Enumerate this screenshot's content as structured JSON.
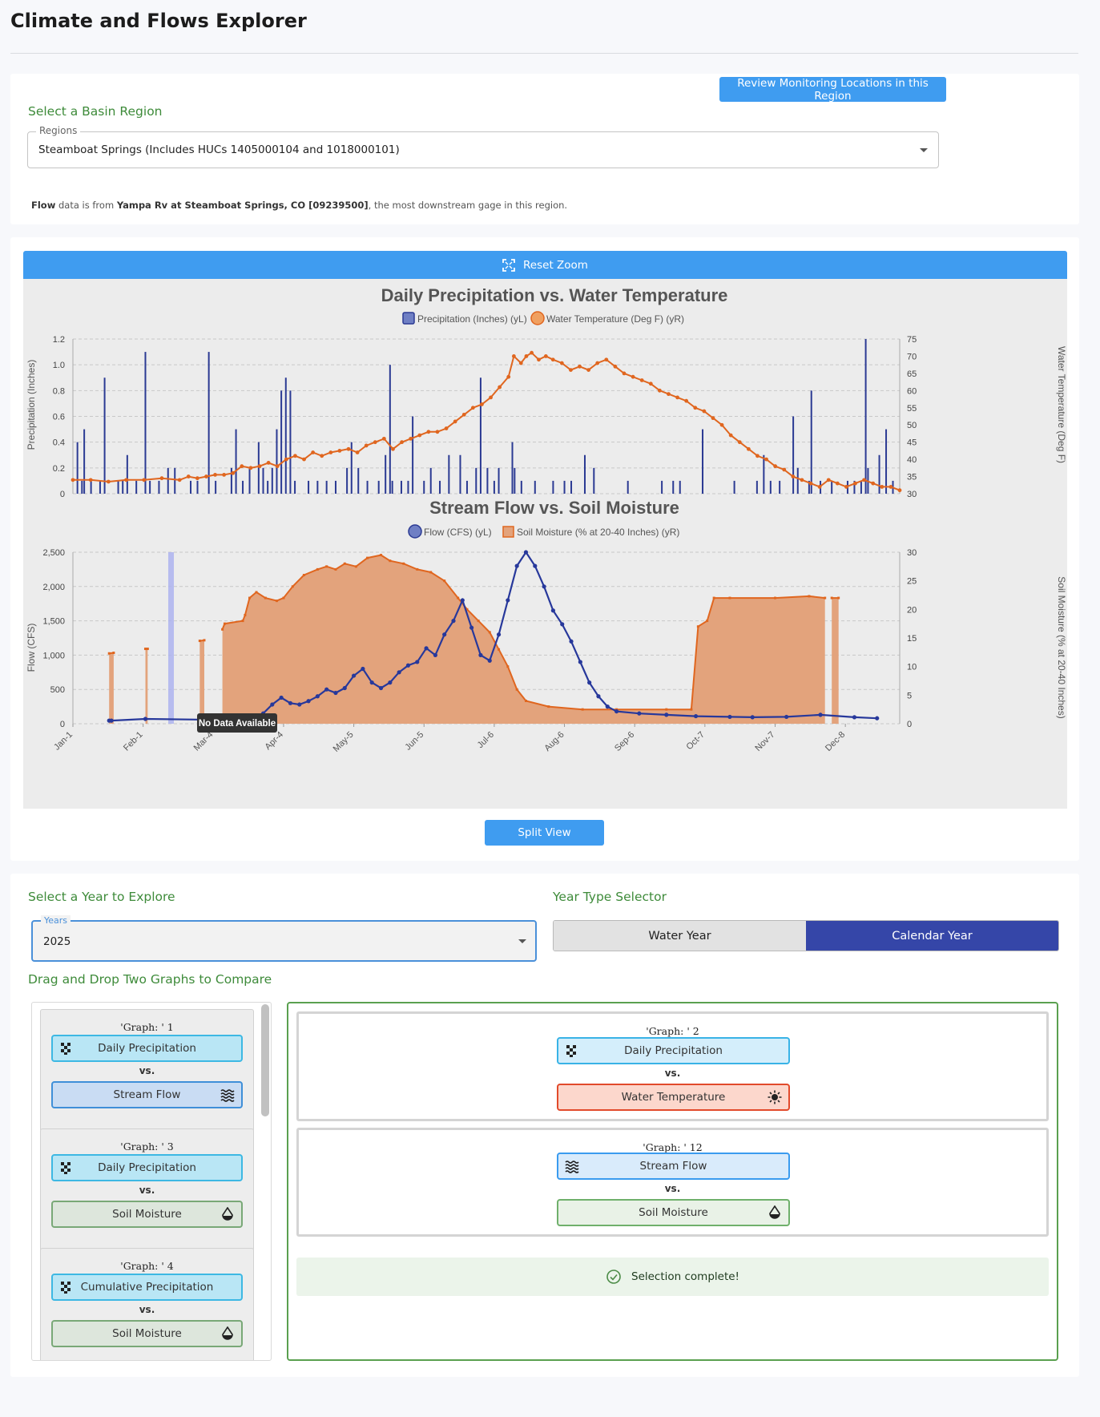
{
  "app": {
    "title": "Climate and Flows Explorer"
  },
  "basin": {
    "heading": "Select a Basin Region",
    "review_button": "Review Monitoring Locations in this Region",
    "select_label": "Regions",
    "select_value": "Steamboat Springs (Includes HUCs 1405000104 and 1018000101)",
    "note_prefix": "Flow",
    "note_mid": " data is from ",
    "note_gage": "Yampa Rv at Steamboat Springs, CO [09239500]",
    "note_suffix": ", the most downstream gage in this region."
  },
  "charts": {
    "reset_zoom": "Reset Zoom",
    "split_view": "Split View",
    "tooltip": "No Data Available",
    "months": [
      "Jan-1",
      "Feb-1",
      "Mar-4",
      "Apr-4",
      "May-5",
      "Jun-5",
      "Jul-6",
      "Aug-6",
      "Sep-6",
      "Oct-7",
      "Nov-7",
      "Dec-8"
    ],
    "colors": {
      "precip": "#2b3a93",
      "temp": "#e0661f",
      "flow": "#27389b",
      "soil": "#e0661f",
      "soil_fill": "#e3a37c",
      "no_data_band": "#aab0f0"
    }
  },
  "chart_data": [
    {
      "type": "bar",
      "title": "Daily Precipitation vs. Water Temperature",
      "legend": [
        "Precipitation (Inches) (yL)",
        "Water Temperature (Deg F) (yR)"
      ],
      "ylabel": "Precipitation (Inches)",
      "y2label": "Water Temperature (Deg F)",
      "ylim": [
        0,
        1.2
      ],
      "y2lim": [
        30,
        75
      ],
      "yticks": [
        "0",
        "0.2",
        "0.4",
        "0.6",
        "0.8",
        "1.0",
        "1.2"
      ],
      "y2ticks": [
        "30",
        "35",
        "40",
        "45",
        "50",
        "55",
        "60",
        "65",
        "70",
        "75"
      ],
      "precip_day_values": [
        [
          2,
          0.4
        ],
        [
          4,
          0.1
        ],
        [
          5,
          0.5
        ],
        [
          8,
          0.1
        ],
        [
          12,
          0.1
        ],
        [
          14,
          0.9
        ],
        [
          20,
          0.1
        ],
        [
          22,
          0.1
        ],
        [
          24,
          0.3
        ],
        [
          28,
          0.1
        ],
        [
          32,
          0.1
        ],
        [
          34,
          0.1
        ],
        [
          38,
          0.1
        ],
        [
          42,
          0.2
        ],
        [
          45,
          0.2
        ],
        [
          52,
          0.1
        ],
        [
          55,
          0.1
        ],
        [
          60,
          1.1
        ],
        [
          63,
          0.1
        ],
        [
          70,
          0.2
        ],
        [
          72,
          0.5
        ],
        [
          75,
          0.1
        ],
        [
          78,
          0.2
        ],
        [
          82,
          0.4
        ],
        [
          84,
          0.2
        ],
        [
          86,
          0.1
        ],
        [
          88,
          0.2
        ],
        [
          90,
          0.5
        ],
        [
          92,
          0.8
        ],
        [
          94,
          0.9
        ],
        [
          96,
          0.8
        ],
        [
          98,
          0.1
        ],
        [
          104,
          0.1
        ],
        [
          108,
          0.1
        ],
        [
          112,
          0.1
        ],
        [
          116,
          0.1
        ],
        [
          121,
          0.2
        ],
        [
          123,
          0.4
        ],
        [
          126,
          0.2
        ],
        [
          130,
          0.1
        ],
        [
          135,
          0.1
        ],
        [
          138,
          0.3
        ],
        [
          141,
          0.1
        ],
        [
          145,
          0.1
        ],
        [
          148,
          0.1
        ],
        [
          150,
          0.6
        ],
        [
          155,
          0.1
        ],
        [
          158,
          0.2
        ],
        [
          162,
          0.1
        ],
        [
          166,
          0.3
        ],
        [
          171,
          0.3
        ],
        [
          174,
          0.1
        ],
        [
          178,
          0.2
        ],
        [
          180,
          0.9
        ],
        [
          183,
          0.2
        ],
        [
          186,
          0.1
        ],
        [
          188,
          0.2
        ],
        [
          194,
          0.4
        ],
        [
          198,
          0.1
        ],
        [
          204,
          0.1
        ],
        [
          212,
          0.1
        ],
        [
          217,
          0.1
        ],
        [
          220,
          0.1
        ],
        [
          226,
          0.3
        ],
        [
          230,
          0.2
        ],
        [
          245,
          0.1
        ],
        [
          260,
          0.1
        ],
        [
          265,
          0.1
        ],
        [
          268,
          0.1
        ],
        [
          278,
          0.5
        ],
        [
          292,
          0.1
        ],
        [
          302,
          0.1
        ],
        [
          305,
          0.3
        ],
        [
          308,
          0.1
        ],
        [
          312,
          0.1
        ],
        [
          320,
          0.2
        ],
        [
          325,
          0.1
        ],
        [
          330,
          0.1
        ],
        [
          335,
          0.1
        ],
        [
          342,
          0.1
        ],
        [
          345,
          0.1
        ],
        [
          348,
          0.1
        ],
        [
          351,
          0.2
        ],
        [
          356,
          0.3
        ],
        [
          362,
          0.1
        ]
      ],
      "precip_by_day": {
        "17": 1.1,
        "116": 1.0,
        "176": 0.4,
        "317": 0.6,
        "324": 0.8,
        "329": 1.2,
        "371": 0.5,
        "373": 0.1
      }
    },
    {
      "type": "area",
      "title": "Stream Flow vs. Soil Moisture",
      "legend": [
        "Flow (CFS) (yL)",
        "Soil Moisture (% at 20-40 Inches) (yR)"
      ],
      "ylabel": "Flow (CFS)",
      "y2label": "Soil Moisture (% at 20-40 Inches)",
      "ylim": [
        0,
        2500
      ],
      "y2lim": [
        0,
        30
      ],
      "yticks": [
        "0",
        "500",
        "1,000",
        "1,500",
        "2,000",
        "2,500"
      ],
      "y2ticks": [
        "0",
        "5",
        "10",
        "15",
        "20",
        "25",
        "30"
      ],
      "x": [
        "Jan-1",
        "Feb-1",
        "Mar-4",
        "Apr-4",
        "May-5",
        "Jun-5",
        "Jul-6",
        "Aug-6",
        "Sep-6",
        "Oct-7",
        "Nov-7",
        "Dec-8"
      ]
    }
  ],
  "compare": {
    "year_heading": "Select a Year to Explore",
    "year_label": "Years",
    "year_value": "2025",
    "type_heading": "Year Type Selector",
    "water_year": "Water Year",
    "calendar_year": "Calendar Year",
    "drag_heading": "Drag and Drop Two Graphs to Compare",
    "vs": "vs.",
    "list": [
      {
        "title": "'Graph: ' 1",
        "a": "Daily Precipitation",
        "b": "Stream Flow"
      },
      {
        "title": "'Graph: ' 3",
        "a": "Daily Precipitation",
        "b": "Soil Moisture"
      },
      {
        "title": "'Graph: ' 4",
        "a": "Cumulative Precipitation",
        "b": "Soil Moisture"
      }
    ],
    "selected": [
      {
        "title": "'Graph: ' 2",
        "a": "Daily Precipitation",
        "b": "Water Temperature"
      },
      {
        "title": "'Graph: ' 12",
        "a": "Stream Flow",
        "b": "Soil Moisture"
      }
    ],
    "success": "Selection complete!"
  }
}
